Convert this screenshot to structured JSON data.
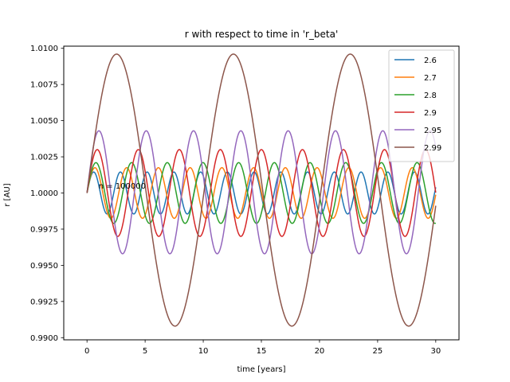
{
  "chart_data": {
    "type": "line",
    "title": "r with respect to time in 'r_beta'",
    "xlabel": "time [years]",
    "ylabel": "r [AU]",
    "xlim": [
      -2,
      32
    ],
    "ylim": [
      0.98985,
      1.01015
    ],
    "xticks": [
      0,
      5,
      10,
      15,
      20,
      25,
      30
    ],
    "yticks": [
      0.99,
      0.9925,
      0.995,
      0.9975,
      1.0,
      1.0025,
      1.005,
      1.0075,
      1.01
    ],
    "ytick_labels": [
      "0.9900",
      "0.9925",
      "0.9950",
      "0.9975",
      "1.0000",
      "1.0025",
      "1.0050",
      "1.0075",
      "1.0100"
    ],
    "grid": false,
    "legend_position": "top-right",
    "annotation": {
      "text": "n = 100000",
      "x": 1.0,
      "y": 1.0003
    },
    "series": [
      {
        "name": "2.6",
        "color": "#1f77b4",
        "t_end": 30,
        "r_min": 0.99855,
        "r_max": 1.00145,
        "period": 2.3
      },
      {
        "name": "2.7",
        "color": "#ff7f0e",
        "t_end": 30,
        "r_min": 0.99825,
        "r_max": 1.00175,
        "period": 2.73
      },
      {
        "name": "2.8",
        "color": "#2ca02c",
        "t_end": 30,
        "r_min": 0.9979,
        "r_max": 1.0021,
        "period": 3.07
      },
      {
        "name": "2.9",
        "color": "#d62728",
        "t_end": 30,
        "r_min": 0.997,
        "r_max": 1.003,
        "period": 3.53
      },
      {
        "name": "2.95",
        "color": "#9467bd",
        "t_end": 30,
        "r_min": 0.9958,
        "r_max": 1.0043,
        "period": 4.07
      },
      {
        "name": "2.99",
        "color": "#8c564b",
        "t_end": 30,
        "r_min": 0.9908,
        "r_max": 1.0096,
        "period": 10.05
      }
    ]
  }
}
